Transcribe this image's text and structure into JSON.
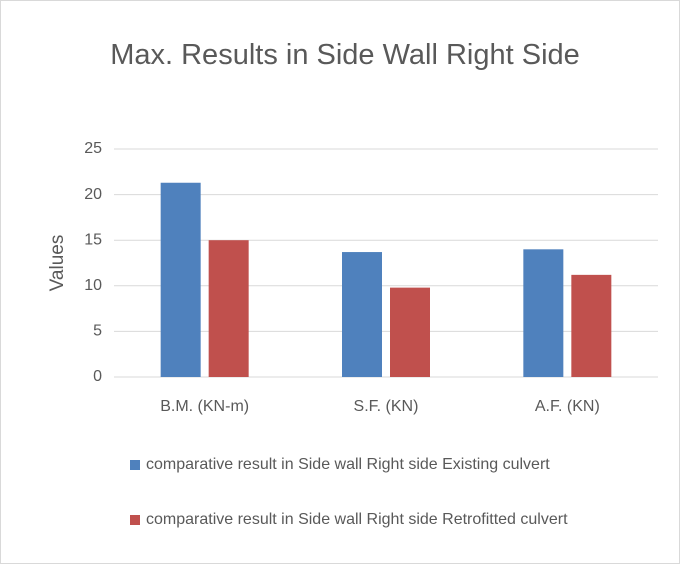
{
  "chart_data": {
    "type": "bar",
    "title": "Max. Results in Side Wall Right Side",
    "y_label": "Values",
    "categories": [
      "B.M. (KN-m)",
      "S.F. (KN)",
      "A.F. (KN)"
    ],
    "series": [
      {
        "name": "comparative result in Side wall Right side Existing culvert",
        "color": "#4f81bd",
        "values": [
          21.3,
          13.7,
          14.0
        ]
      },
      {
        "name": "comparative result in Side wall Right side Retrofitted culvert",
        "color": "#c0504d",
        "values": [
          15.0,
          9.8,
          11.2
        ]
      }
    ],
    "ylim": [
      0,
      25
    ],
    "yticks": [
      0,
      5,
      10,
      15,
      20,
      25
    ],
    "grid": true,
    "legend": "bottom"
  }
}
